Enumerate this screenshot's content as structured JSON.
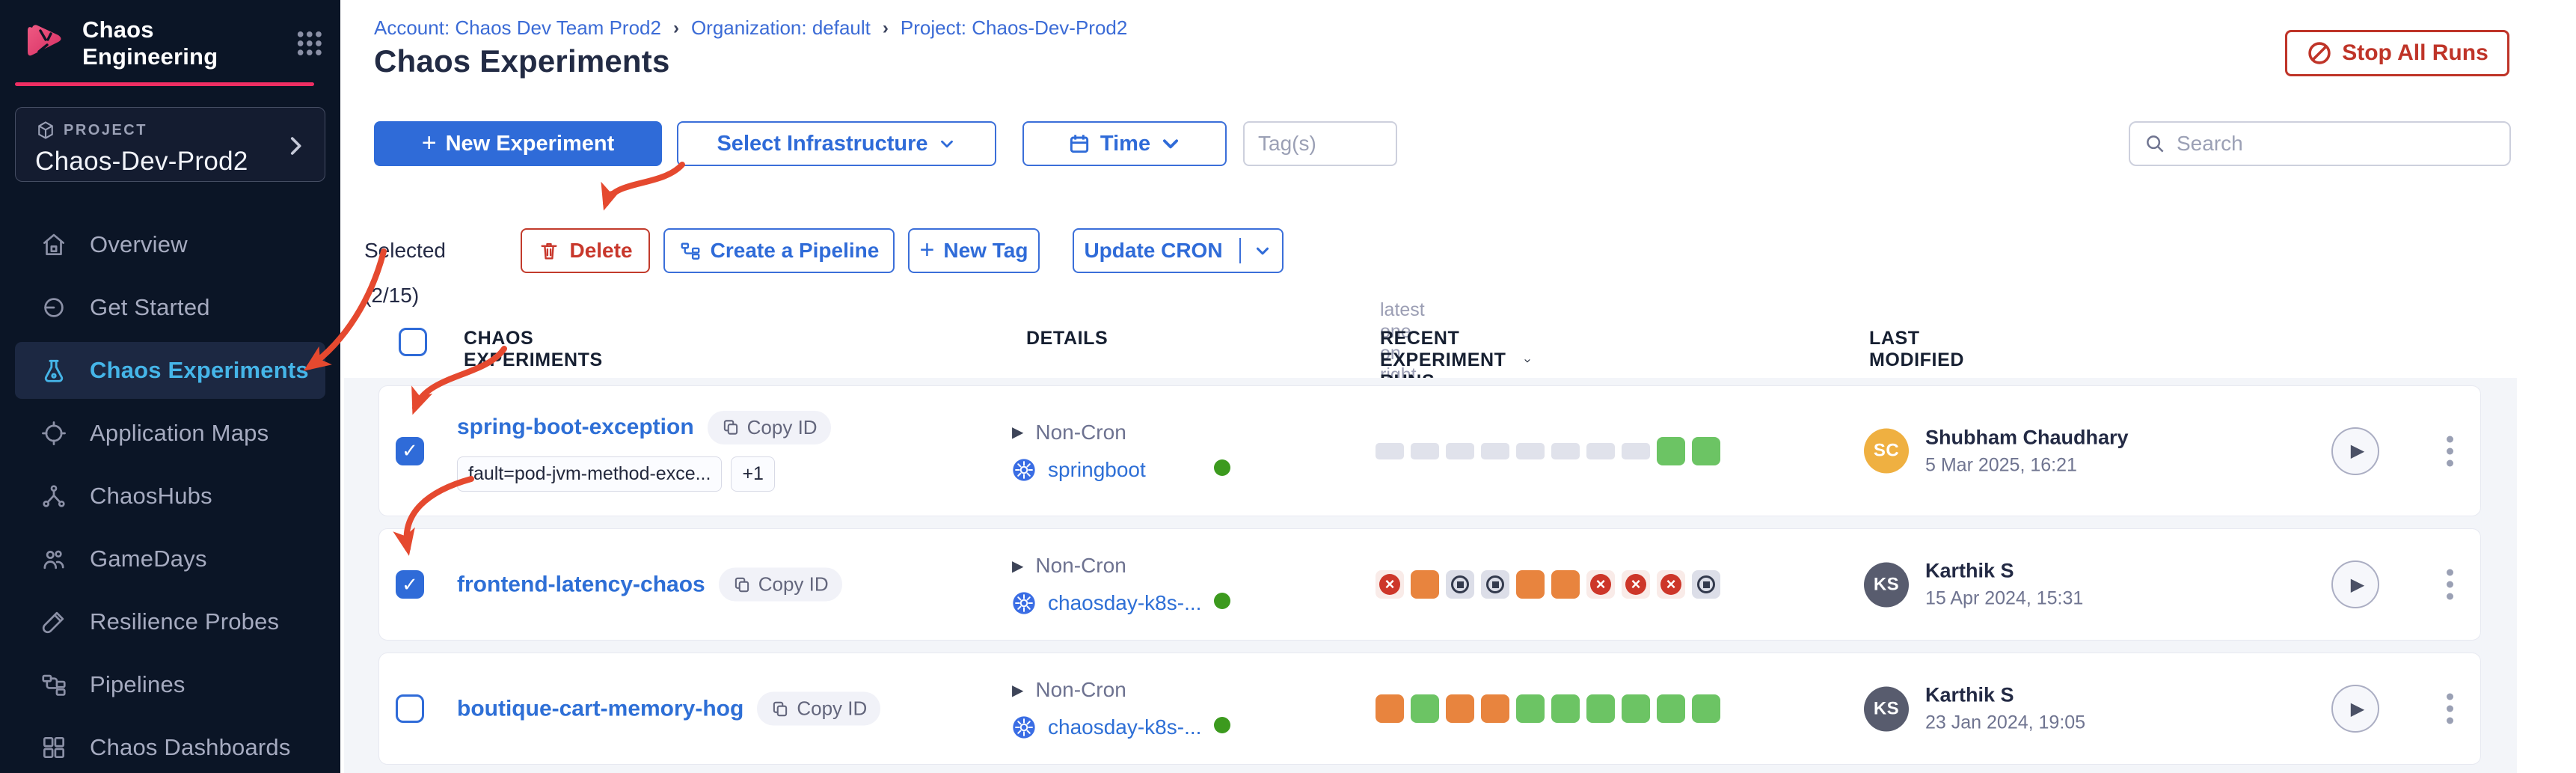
{
  "brand": {
    "app_title": "Chaos Engineering"
  },
  "project": {
    "eyebrow": "PROJECT",
    "name": "Chaos-Dev-Prod2"
  },
  "sidebar": {
    "items": [
      {
        "label": "Overview",
        "active": false
      },
      {
        "label": "Get Started",
        "active": false
      },
      {
        "label": "Chaos Experiments",
        "active": true
      },
      {
        "label": "Application Maps",
        "active": false
      },
      {
        "label": "ChaosHubs",
        "active": false
      },
      {
        "label": "GameDays",
        "active": false
      },
      {
        "label": "Resilience Probes",
        "active": false
      },
      {
        "label": "Pipelines",
        "active": false
      },
      {
        "label": "Chaos Dashboards",
        "active": false
      }
    ]
  },
  "breadcrumb": {
    "items": [
      "Account: Chaos Dev Team Prod2",
      "Organization: default",
      "Project: Chaos-Dev-Prod2"
    ],
    "separator": "›"
  },
  "page": {
    "title": "Chaos Experiments"
  },
  "header_actions": {
    "stop_all_runs": "Stop All Runs"
  },
  "toolbar": {
    "new_experiment": "New Experiment",
    "select_infrastructure": "Select Infrastructure",
    "time": "Time",
    "tags_placeholder": "Tag(s)",
    "search_placeholder": "Search"
  },
  "action_bar": {
    "selected_label": "Selected (2/15)",
    "delete": "Delete",
    "create_pipeline": "Create a Pipeline",
    "new_tag": "New Tag",
    "update_cron": "Update CRON"
  },
  "table": {
    "annotation": "latest one on right side →",
    "columns": {
      "experiments": "CHAOS EXPERIMENTS",
      "details": "DETAILS",
      "runs": "RECENT EXPERIMENT RUNS",
      "modified": "LAST MODIFIED"
    },
    "rows": [
      {
        "name": "spring-boot-exception",
        "copy_id": "Copy ID",
        "checked": true,
        "tags": [
          "fault=pod-jvm-method-exce..."
        ],
        "tags_more": "+1",
        "cron_label": "Non-Cron",
        "infra": "springboot",
        "infra_status": "active",
        "runs": [
          "empty",
          "empty",
          "empty",
          "empty",
          "empty",
          "empty",
          "empty",
          "empty",
          "completed",
          "completed"
        ],
        "modified_by": "Shubham Chaudhary",
        "avatar": "SC",
        "avatar_bg": "#efb041",
        "date": "5 Mar 2025, 16:21"
      },
      {
        "name": "frontend-latency-chaos",
        "copy_id": "Copy ID",
        "checked": true,
        "cron_label": "Non-Cron",
        "infra": "chaosday-k8s-...",
        "infra_status": "active",
        "runs": [
          "failed",
          "running",
          "stopped",
          "stopped",
          "running",
          "running",
          "failed",
          "failed",
          "failed",
          "stopped"
        ],
        "modified_by": "Karthik S",
        "avatar": "KS",
        "avatar_bg": "#585c6e",
        "date": "15 Apr 2024, 15:31"
      },
      {
        "name": "boutique-cart-memory-hog",
        "copy_id": "Copy ID",
        "checked": false,
        "cron_label": "Non-Cron",
        "infra": "chaosday-k8s-...",
        "infra_status": "active",
        "runs": [
          "running",
          "completed",
          "running",
          "running",
          "completed",
          "completed",
          "completed",
          "completed",
          "completed",
          "completed"
        ],
        "modified_by": "Karthik S",
        "avatar": "KS",
        "avatar_bg": "#585c6e",
        "date": "23 Jan 2024, 19:05"
      }
    ]
  },
  "colors": {
    "sidebar_bg": "#0b1526",
    "brand_accent": "#ef2e63",
    "primary_blue": "#2f6bd8",
    "nav_active_blue": "#45b5e8",
    "danger_red": "#c23b2c",
    "run_green": "#6cc464",
    "run_orange": "#e8843e",
    "run_failed_red": "#cd3629",
    "status_green": "#3c9a1e",
    "annotation_red": "#e5492f"
  }
}
